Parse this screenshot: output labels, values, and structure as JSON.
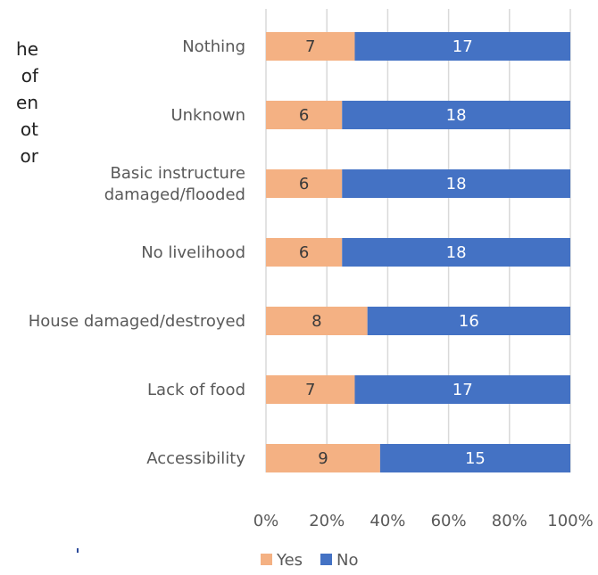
{
  "left_text_fragments": [
    "he",
    "of",
    "",
    "en",
    "ot",
    "or"
  ],
  "chart_data": {
    "type": "bar",
    "orientation": "horizontal",
    "stacked": true,
    "percent_stacked": true,
    "title": "",
    "xlabel": "",
    "ylabel": "",
    "categories": [
      "Nothing",
      "Unknown",
      "Basic instructure damaged/flooded",
      "No livelihood",
      "House damaged/destroyed",
      "Lack of food",
      "Accessibility"
    ],
    "category_lines": [
      [
        "Nothing"
      ],
      [
        "Unknown"
      ],
      [
        "Basic instructure",
        "damaged/flooded"
      ],
      [
        "No livelihood"
      ],
      [
        "House damaged/destroyed"
      ],
      [
        "Lack of food"
      ],
      [
        "Accessibility"
      ]
    ],
    "series": [
      {
        "name": "Yes",
        "color": "#f4b183",
        "values": [
          7,
          6,
          6,
          6,
          8,
          7,
          9
        ]
      },
      {
        "name": "No",
        "color": "#4472c4",
        "values": [
          17,
          18,
          18,
          18,
          16,
          17,
          15
        ]
      }
    ],
    "xlim": [
      0,
      100
    ],
    "x_ticks": [
      "0%",
      "20%",
      "40%",
      "60%",
      "80%",
      "100%"
    ],
    "grid": true,
    "legend": "bottom",
    "data_label_colors": {
      "Yes": "#3a3a3a",
      "No": "#ffffff"
    }
  }
}
